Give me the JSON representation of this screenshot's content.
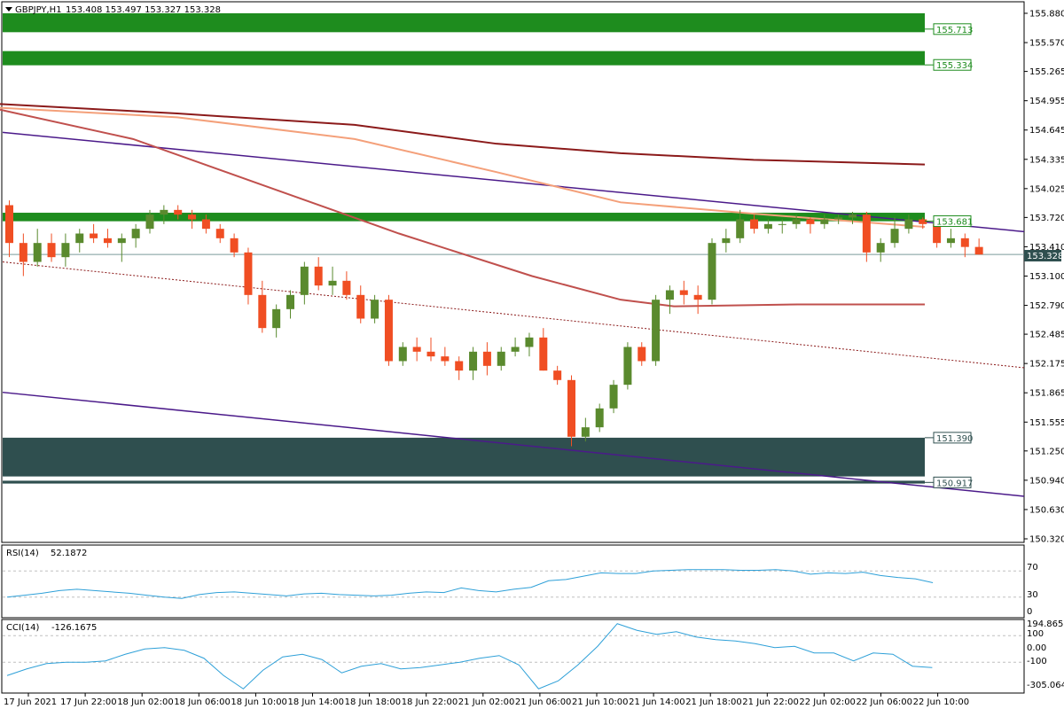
{
  "window": {
    "title": "GBPJPY,H1",
    "ohlc": "153.408 153.497 153.327 153.328",
    "current_price": "153.328"
  },
  "colors": {
    "bull": "#5a8a2e",
    "bear": "#f04e23",
    "supply_zone": "#1e8c1e",
    "demand_zone": "#2f4f4f",
    "ma_slow": "#8b1a1a",
    "ma_mid": "#f4a07a",
    "ma_fast": "#c0504d",
    "channel": "#4b1a8a",
    "indicator": "#2ea0d8",
    "price_tag_bg": "#2f4f4f"
  },
  "price_axis_ticks": [
    "155.880",
    "155.570",
    "155.265",
    "154.955",
    "154.645",
    "154.335",
    "154.025",
    "153.720",
    "153.410",
    "153.100",
    "152.790",
    "152.485",
    "152.175",
    "151.865",
    "151.555",
    "151.250",
    "150.940",
    "150.630",
    "150.320"
  ],
  "level_tags": [
    {
      "price": 155.713,
      "label": "155.713",
      "type": "supply"
    },
    {
      "price": 155.334,
      "label": "155.334",
      "type": "supply"
    },
    {
      "price": 153.681,
      "label": "153.681",
      "type": "supply"
    },
    {
      "price": 151.39,
      "label": "151.390",
      "type": "demand"
    },
    {
      "price": 150.917,
      "label": "150.917",
      "type": "demand"
    }
  ],
  "zones": [
    {
      "top": 155.88,
      "bottom": 155.68,
      "type": "supply"
    },
    {
      "top": 155.48,
      "bottom": 155.33,
      "type": "supply"
    },
    {
      "top": 153.77,
      "bottom": 153.68,
      "type": "supply"
    },
    {
      "top": 151.39,
      "bottom": 150.98,
      "type": "demand"
    },
    {
      "top": 150.935,
      "bottom": 150.905,
      "type": "demand"
    }
  ],
  "chart_data": {
    "type": "candlestick",
    "symbol": "GBPJPY",
    "timeframe": "H1",
    "ylim": [
      150.32,
      155.95
    ],
    "candles": [
      [
        153.85,
        153.9,
        153.3,
        153.45
      ],
      [
        153.45,
        153.55,
        153.1,
        153.25
      ],
      [
        153.25,
        153.6,
        153.2,
        153.45
      ],
      [
        153.45,
        153.55,
        153.25,
        153.3
      ],
      [
        153.3,
        153.55,
        153.2,
        153.45
      ],
      [
        153.45,
        153.6,
        153.35,
        153.55
      ],
      [
        153.55,
        153.65,
        153.45,
        153.5
      ],
      [
        153.5,
        153.6,
        153.4,
        153.45
      ],
      [
        153.45,
        153.55,
        153.25,
        153.5
      ],
      [
        153.5,
        153.65,
        153.4,
        153.6
      ],
      [
        153.6,
        153.8,
        153.55,
        153.75
      ],
      [
        153.75,
        153.85,
        153.65,
        153.8
      ],
      [
        153.8,
        153.85,
        153.7,
        153.75
      ],
      [
        153.75,
        153.8,
        153.6,
        153.7
      ],
      [
        153.7,
        153.75,
        153.55,
        153.6
      ],
      [
        153.6,
        153.65,
        153.45,
        153.5
      ],
      [
        153.5,
        153.55,
        153.3,
        153.35
      ],
      [
        153.35,
        153.4,
        152.8,
        152.9
      ],
      [
        152.9,
        153.05,
        152.5,
        152.55
      ],
      [
        152.55,
        152.8,
        152.45,
        152.75
      ],
      [
        152.75,
        152.95,
        152.65,
        152.9
      ],
      [
        152.9,
        153.25,
        152.8,
        153.2
      ],
      [
        153.2,
        153.3,
        152.95,
        153.0
      ],
      [
        153.0,
        153.2,
        152.9,
        153.05
      ],
      [
        153.05,
        153.15,
        152.85,
        152.9
      ],
      [
        152.9,
        153.0,
        152.6,
        152.65
      ],
      [
        152.65,
        152.9,
        152.6,
        152.85
      ],
      [
        152.85,
        152.9,
        152.15,
        152.2
      ],
      [
        152.2,
        152.4,
        152.15,
        152.35
      ],
      [
        152.35,
        152.45,
        152.2,
        152.3
      ],
      [
        152.3,
        152.45,
        152.2,
        152.25
      ],
      [
        152.25,
        152.35,
        152.15,
        152.2
      ],
      [
        152.2,
        152.25,
        152.0,
        152.1
      ],
      [
        152.1,
        152.35,
        152.0,
        152.3
      ],
      [
        152.3,
        152.4,
        152.05,
        152.15
      ],
      [
        152.15,
        152.35,
        152.1,
        152.3
      ],
      [
        152.3,
        152.45,
        152.25,
        152.35
      ],
      [
        152.35,
        152.5,
        152.25,
        152.45
      ],
      [
        152.45,
        152.55,
        152.1,
        152.1
      ],
      [
        152.1,
        152.15,
        151.95,
        152.0
      ],
      [
        152.0,
        152.05,
        151.3,
        151.4
      ],
      [
        151.4,
        151.6,
        151.35,
        151.5
      ],
      [
        151.5,
        151.75,
        151.45,
        151.7
      ],
      [
        151.7,
        152.0,
        151.65,
        151.95
      ],
      [
        151.95,
        152.4,
        151.9,
        152.35
      ],
      [
        152.35,
        152.4,
        152.15,
        152.2
      ],
      [
        152.2,
        152.9,
        152.15,
        152.85
      ],
      [
        152.85,
        153.0,
        152.7,
        152.95
      ],
      [
        152.95,
        153.05,
        152.8,
        152.9
      ],
      [
        152.9,
        153.0,
        152.7,
        152.85
      ],
      [
        152.85,
        153.5,
        152.8,
        153.45
      ],
      [
        153.45,
        153.6,
        153.35,
        153.5
      ],
      [
        153.5,
        153.8,
        153.45,
        153.7
      ],
      [
        153.7,
        153.75,
        153.55,
        153.6
      ],
      [
        153.6,
        153.7,
        153.55,
        153.65
      ],
      [
        153.65,
        153.7,
        153.55,
        153.65
      ],
      [
        153.65,
        153.75,
        153.6,
        153.7
      ],
      [
        153.7,
        153.72,
        153.55,
        153.65
      ],
      [
        153.65,
        153.75,
        153.6,
        153.7
      ],
      [
        153.7,
        153.75,
        153.65,
        153.72
      ],
      [
        153.72,
        153.78,
        153.65,
        153.75
      ],
      [
        153.75,
        153.78,
        153.25,
        153.35
      ],
      [
        153.35,
        153.5,
        153.25,
        153.45
      ],
      [
        153.45,
        153.72,
        153.4,
        153.6
      ],
      [
        153.6,
        153.75,
        153.55,
        153.7
      ],
      [
        153.7,
        153.72,
        153.6,
        153.65
      ],
      [
        153.65,
        153.7,
        153.4,
        153.45
      ],
      [
        153.45,
        153.6,
        153.4,
        153.5
      ],
      [
        153.5,
        153.55,
        153.3,
        153.408
      ],
      [
        153.408,
        153.497,
        153.327,
        153.328
      ]
    ],
    "indicators": [
      {
        "name": "RSI(14)",
        "value": "52.1872",
        "levels": [
          "70",
          "30",
          "0"
        ]
      },
      {
        "name": "CCI(14)",
        "value": "-126.1675",
        "levels": [
          "194.8659",
          "100",
          "0.00",
          "-100",
          "-305.0646"
        ]
      }
    ],
    "time_labels": [
      "17 Jun 2021",
      "17 Jun 22:00",
      "18 Jun 02:00",
      "18 Jun 06:00",
      "18 Jun 10:00",
      "18 Jun 14:00",
      "18 Jun 18:00",
      "18 Jun 22:00",
      "21 Jun 02:00",
      "21 Jun 06:00",
      "21 Jun 10:00",
      "21 Jun 14:00",
      "21 Jun 18:00",
      "21 Jun 22:00",
      "22 Jun 02:00",
      "22 Jun 06:00",
      "22 Jun 10:00"
    ]
  }
}
